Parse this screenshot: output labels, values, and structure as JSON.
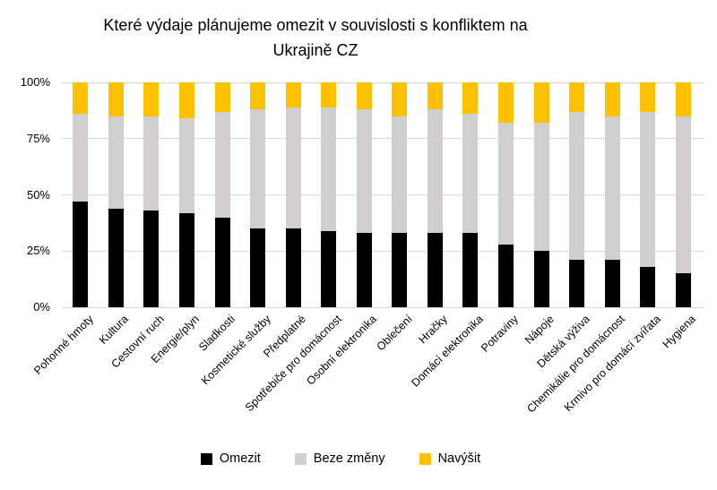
{
  "chart_data": {
    "type": "bar",
    "stacked": true,
    "orientation": "vertical",
    "title": "Které výdaje plánujeme omezit v souvislosti s konfliktem na Ukrajině CZ",
    "title_lines": [
      "Které výdaje plánujeme omezit v souvislosti s konfliktem na",
      "Ukrajině CZ"
    ],
    "categories": [
      "Pohonné hmoty",
      "Kultura",
      "Cestovní ruch",
      "Energie/plyn",
      "Sladkosti",
      "Kosmetické služby",
      "Předplatné",
      "Spotřebiče pro domácnost",
      "Osobní elektronika",
      "Oblečení",
      "Hračky",
      "Domácí elektronika",
      "Potraviny",
      "Nápoje",
      "Dětská výživa",
      "Chemikálie pro domácnost",
      "Krmivo pro domácí zvířata",
      "Hygiena"
    ],
    "series": [
      {
        "name": "Omezit",
        "color": "#000000",
        "values": [
          47,
          44,
          43,
          42,
          40,
          35,
          35,
          34,
          33,
          33,
          33,
          33,
          28,
          25,
          21,
          21,
          18,
          15
        ]
      },
      {
        "name": "Beze změny",
        "color": "#d0cece",
        "values": [
          39,
          41,
          42,
          42,
          47,
          53,
          54,
          55,
          55,
          52,
          55,
          53,
          54,
          57,
          66,
          64,
          69,
          70
        ]
      },
      {
        "name": "Navýšit",
        "color": "#ffc000",
        "values": [
          14,
          15,
          15,
          16,
          13,
          12,
          11,
          11,
          12,
          15,
          12,
          14,
          18,
          18,
          13,
          15,
          13,
          15
        ]
      }
    ],
    "y_ticks": [
      {
        "value": 0,
        "label": "0%"
      },
      {
        "value": 25,
        "label": "25%"
      },
      {
        "value": 50,
        "label": "50%"
      },
      {
        "value": 75,
        "label": "75%"
      },
      {
        "value": 100,
        "label": "100%"
      }
    ],
    "ylim": [
      0,
      100
    ],
    "grid": true,
    "legend_position": "bottom"
  },
  "colors": {
    "background": "#ffffff",
    "gridline": "#d9d9d9",
    "text": "#000000"
  }
}
